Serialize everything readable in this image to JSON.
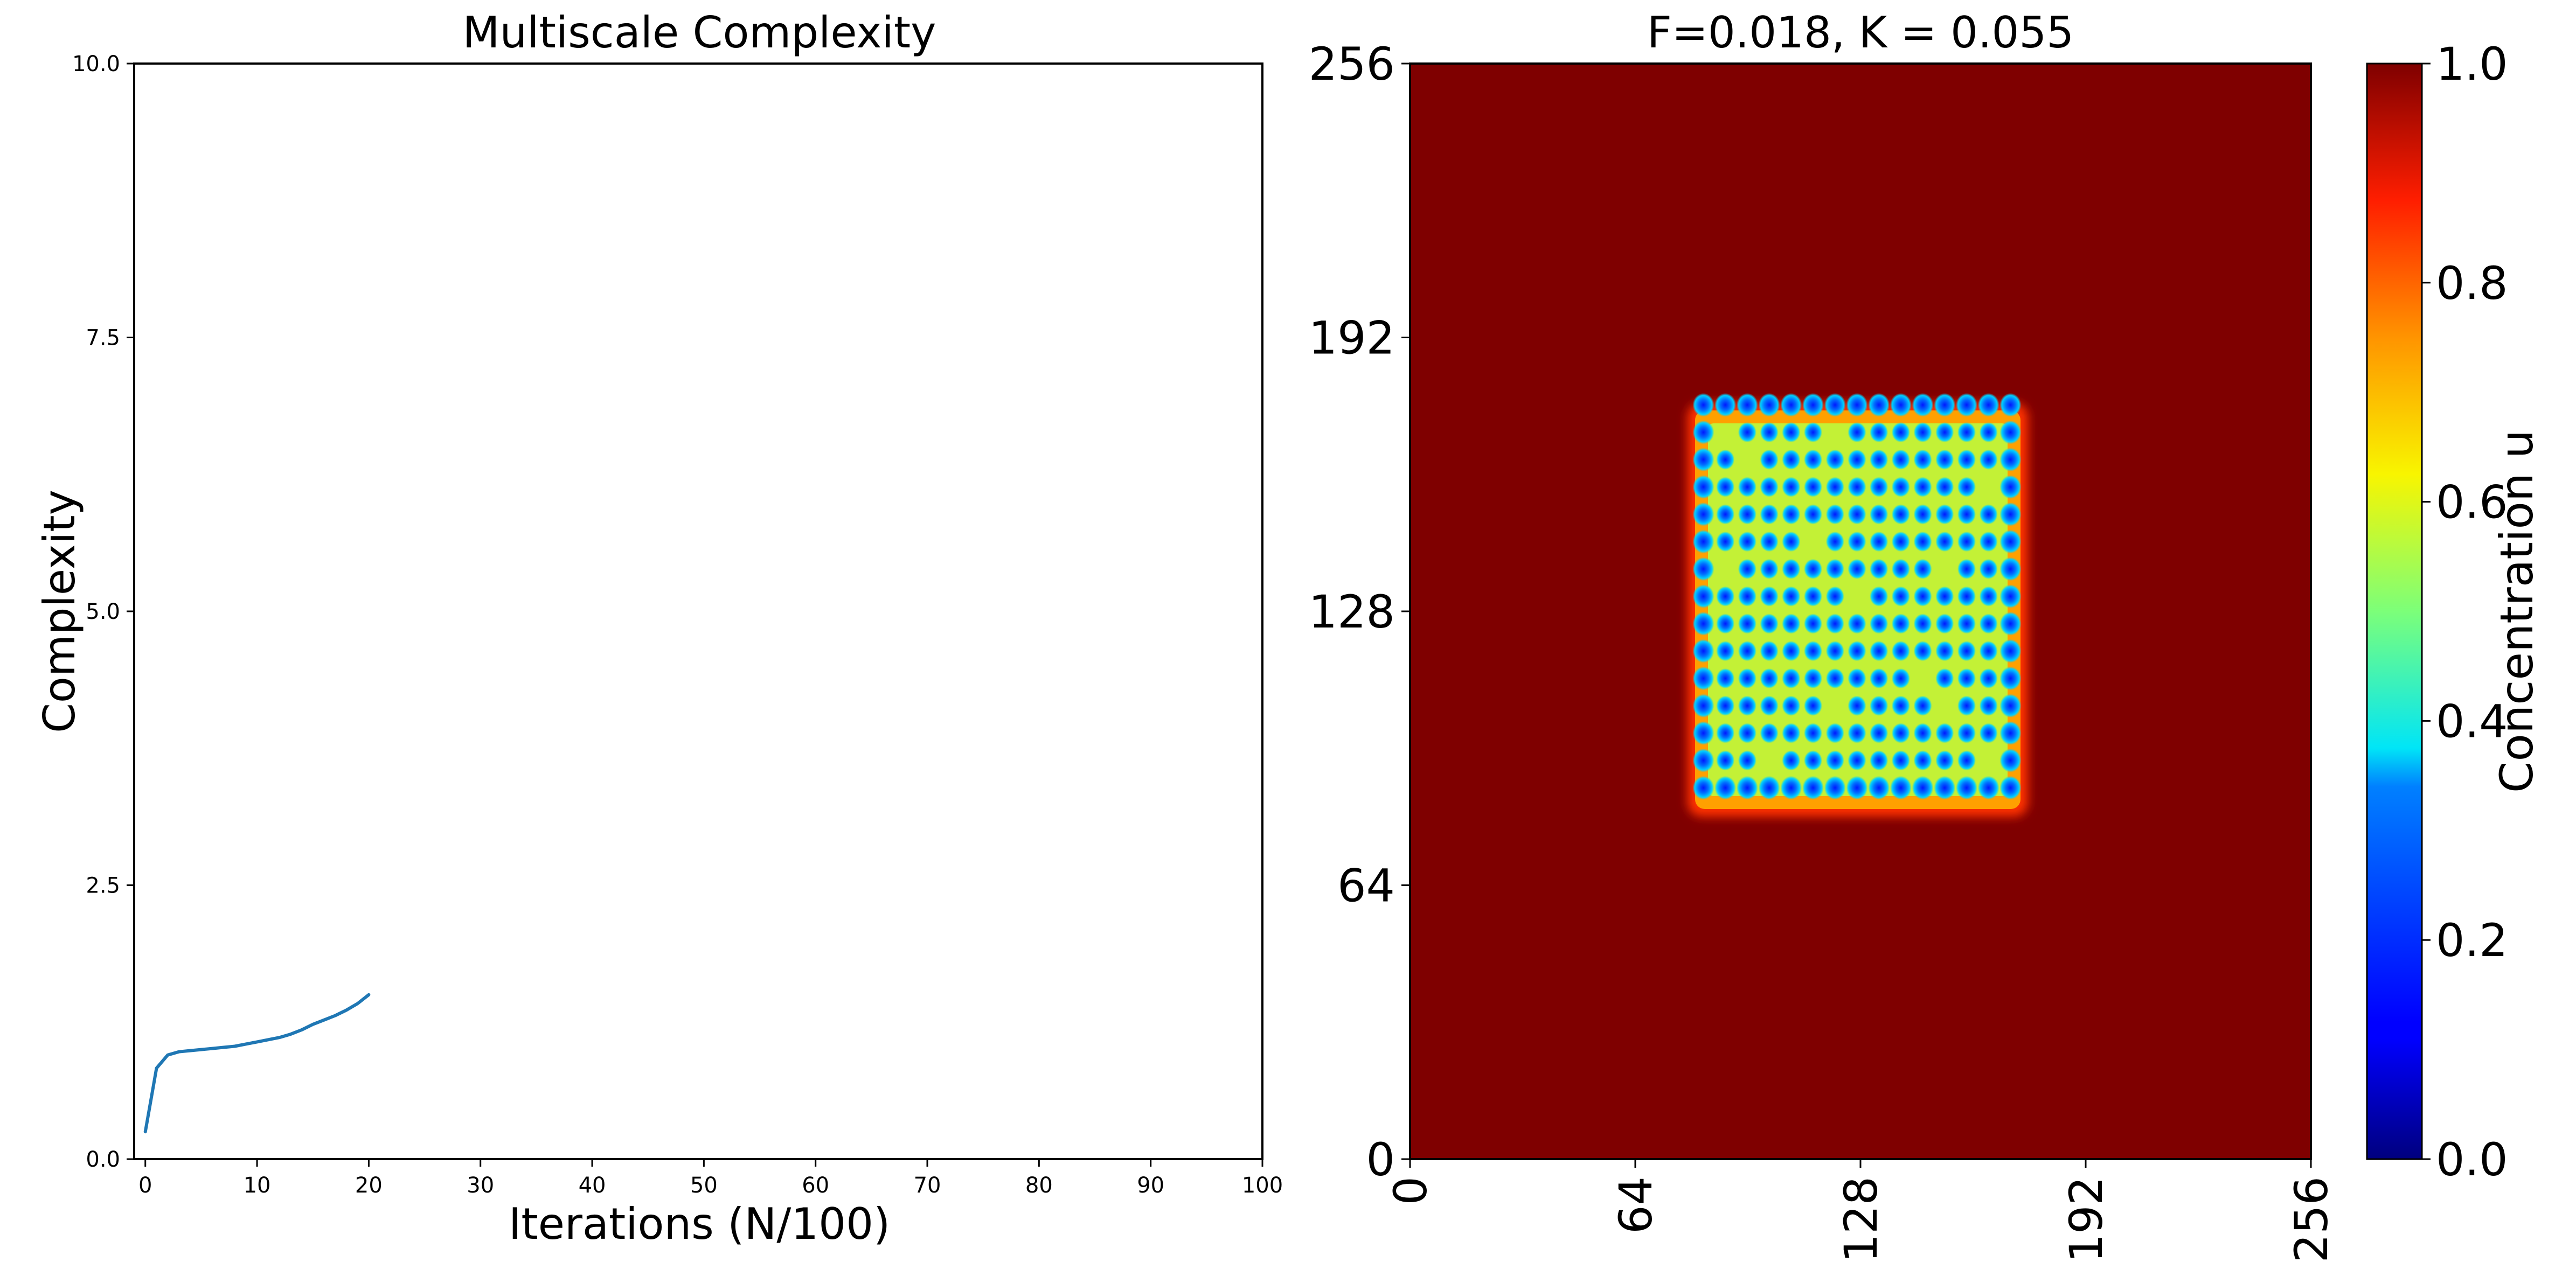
{
  "chart_data": [
    {
      "type": "line",
      "title": "Multiscale Complexity",
      "xlabel": "Iterations (N/100)",
      "ylabel": "Complexity",
      "xlim": [
        -1,
        100
      ],
      "ylim": [
        0,
        10
      ],
      "xticks": [
        "0",
        "10",
        "20",
        "30",
        "40",
        "50",
        "60",
        "70",
        "80",
        "90",
        "100"
      ],
      "yticks": [
        "0.0",
        "2.5",
        "5.0",
        "7.5",
        "10.0"
      ],
      "grid": false,
      "series": [
        {
          "color": "#1f77b4",
          "x": [
            0,
            1,
            2,
            3,
            4,
            5,
            6,
            7,
            8,
            9,
            10,
            11,
            12,
            13,
            14,
            15,
            16,
            17,
            18,
            19,
            20
          ],
          "values": [
            0.25,
            0.83,
            0.95,
            0.98,
            0.99,
            1.0,
            1.01,
            1.02,
            1.03,
            1.05,
            1.07,
            1.09,
            1.11,
            1.14,
            1.18,
            1.23,
            1.27,
            1.31,
            1.36,
            1.42,
            1.5
          ]
        }
      ]
    },
    {
      "type": "heatmap",
      "title": "F=0.018, K = 0.055",
      "xticks": [
        "0",
        "64",
        "128",
        "192",
        "256"
      ],
      "yticks": [
        "256",
        "192",
        "128",
        "64",
        "0"
      ],
      "xlim": [
        0,
        256
      ],
      "ylim": [
        0,
        256
      ],
      "colormap": "jet",
      "background_value": 1.0,
      "pattern_region": {
        "x": [
          80,
          174
        ],
        "y": [
          84,
          179
        ]
      },
      "colorbar": {
        "label": "Concentration u",
        "ticks": [
          "1.0",
          "0.8",
          "0.6",
          "0.4",
          "0.2",
          "0.0"
        ],
        "range": [
          0.0,
          1.0
        ]
      }
    }
  ]
}
